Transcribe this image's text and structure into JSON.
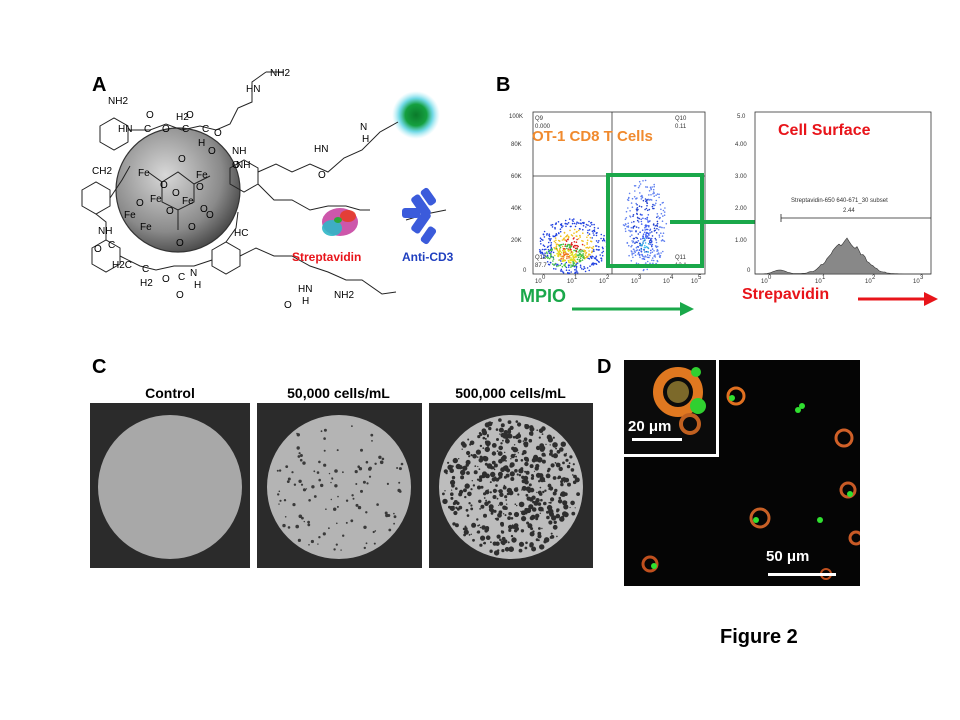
{
  "panels": {
    "a": {
      "letter": "A"
    },
    "b": {
      "letter": "B"
    },
    "c": {
      "letter": "C"
    },
    "d": {
      "letter": "D"
    }
  },
  "panel_a": {
    "chem_labels": [
      "NH2",
      "HN",
      "O",
      "O",
      "H2",
      "HN",
      "C",
      "O",
      "C",
      "C",
      "O",
      "NH",
      "H",
      "O",
      "O",
      "NH",
      "Fe",
      "Fe",
      "Fe",
      "Fe",
      "Fe",
      "Fe",
      "O",
      "O",
      "O",
      "O",
      "O",
      "O",
      "O",
      "O",
      "O",
      "O",
      "CH2",
      "HC",
      "NH",
      "O",
      "C",
      "H2C",
      "C",
      "O",
      "C",
      "N",
      "O",
      "H",
      "H2",
      "HN",
      "H",
      "O",
      "NH2",
      "N",
      "H",
      "HN",
      "O",
      "NH2"
    ],
    "streptavidin_label": "Streptavidin",
    "anticd3_label": "Anti-CD3",
    "colors": {
      "streptavidin": "#e8141a",
      "anticd3": "#1f3fbf",
      "bead_glow": "#1a9e3a"
    }
  },
  "panel_b": {
    "scatter": {
      "title": "OT-1 CD8  T Cells",
      "y_ticks": [
        "100K",
        "80K",
        "60K",
        "40K",
        "20K",
        "0"
      ],
      "x_ticks": [
        "10",
        "10",
        "10",
        "10",
        "10",
        "10"
      ],
      "x_exps": [
        "0",
        "1",
        "2",
        "3",
        "4",
        "5"
      ],
      "quadrants": {
        "q9": "Q9",
        "q9_val": "0.000",
        "q10": "Q10",
        "q10_val": "0.11",
        "q12": "Q12",
        "q12_val": "87.7",
        "q11": "Q11",
        "q11_val": "12.1"
      },
      "x_axis_label": "MPIO"
    },
    "histogram": {
      "title": "Cell Surface",
      "y_ticks": [
        "5.0",
        "4.00",
        "3.00",
        "2.00",
        "1.00",
        "0"
      ],
      "x_ticks": [
        "10",
        "10",
        "10",
        "10"
      ],
      "x_exps": [
        "0",
        "1",
        "2",
        "3"
      ],
      "gate_label": "Streptavidin-650 640-671_30 subset",
      "gate_value": "2.44",
      "x_axis_label": "Strepavidin"
    },
    "colors": {
      "gate_green": "#1aa84a",
      "arrow_red": "#e8141a",
      "title_orange": "#f08a2e"
    }
  },
  "panel_c": {
    "images": [
      {
        "title": "Control"
      },
      {
        "title": "50,000 cells/mL"
      },
      {
        "title": "500,000 cells/mL"
      }
    ]
  },
  "panel_d": {
    "inset_scale": "20 μm",
    "main_scale": "50 μm"
  },
  "figure_label": "Figure 2"
}
